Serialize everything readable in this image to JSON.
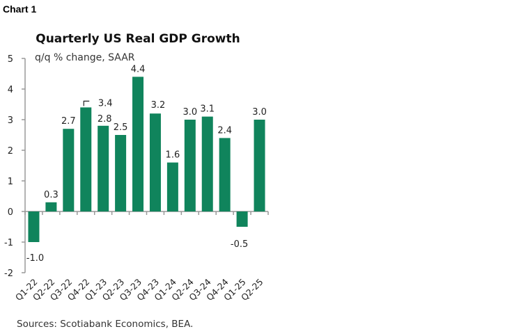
{
  "chart_label": "Chart 1",
  "chart_data": {
    "type": "bar",
    "title": "Quarterly US Real GDP Growth",
    "subtitle": "q/q % change, SAAR",
    "categories": [
      "Q1-22",
      "Q2-22",
      "Q3-22",
      "Q4-22",
      "Q1-23",
      "Q2-23",
      "Q3-23",
      "Q4-23",
      "Q1-24",
      "Q2-24",
      "Q3-24",
      "Q4-24",
      "Q1-25",
      "Q2-25"
    ],
    "values": [
      -1.0,
      0.3,
      2.7,
      3.4,
      2.8,
      2.5,
      4.4,
      3.2,
      1.6,
      3.0,
      3.1,
      2.4,
      -0.5,
      3.0
    ],
    "data_labels": [
      "-1.0",
      "0.3",
      "2.7",
      "3.4",
      "2.8",
      "2.5",
      "4.4",
      "3.2",
      "1.6",
      "3.0",
      "3.1",
      "2.4",
      "-0.5",
      "3.0"
    ],
    "ylim": [
      -2,
      5
    ],
    "yticks": [
      "-2",
      "-1",
      "0",
      "1",
      "2",
      "3",
      "4",
      "5"
    ],
    "grid": false,
    "bar_color": "#10845c",
    "source": "Sources: Scotiabank Economics, BEA."
  }
}
